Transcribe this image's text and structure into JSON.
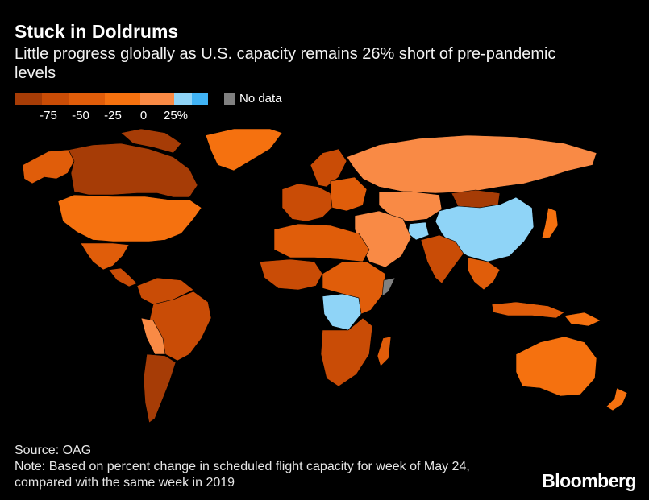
{
  "header": {
    "title": "Stuck in Doldrums",
    "subtitle": "Little progress globally as U.S. capacity remains 26% short of pre-pandemic levels"
  },
  "legend": {
    "bins": [
      {
        "color": "#a63c06"
      },
      {
        "color": "#c94c06"
      },
      {
        "color": "#e05d0a"
      },
      {
        "color": "#f5710f"
      },
      {
        "color": "#f98a45"
      },
      {
        "color": "#8fd4f7"
      },
      {
        "color": "#40b3f5"
      }
    ],
    "ticks": [
      "-75",
      "-50",
      "-25",
      "0",
      "25%"
    ],
    "no_data_label": "No data",
    "no_data_color": "#808080"
  },
  "map": {
    "regions": [
      {
        "name": "north-america-north",
        "color": "#a63c06"
      },
      {
        "name": "alaska",
        "color": "#e05d0a"
      },
      {
        "name": "greenland",
        "color": "#f5710f"
      },
      {
        "name": "canada",
        "color": "#a63c06"
      },
      {
        "name": "united-states",
        "color": "#f5710f"
      },
      {
        "name": "mexico",
        "color": "#e05d0a"
      },
      {
        "name": "central-america",
        "color": "#c94c06"
      },
      {
        "name": "south-america-north",
        "color": "#c94c06"
      },
      {
        "name": "brazil",
        "color": "#c94c06"
      },
      {
        "name": "bolivia-paraguay",
        "color": "#f98a45"
      },
      {
        "name": "argentina-chile",
        "color": "#a63c06"
      },
      {
        "name": "scandinavia",
        "color": "#c94c06"
      },
      {
        "name": "western-europe",
        "color": "#c94c06"
      },
      {
        "name": "eastern-europe",
        "color": "#e05d0a"
      },
      {
        "name": "russia",
        "color": "#f98a45"
      },
      {
        "name": "kazakhstan-central-asia",
        "color": "#f98a45"
      },
      {
        "name": "mongolia",
        "color": "#a63c06"
      },
      {
        "name": "china",
        "color": "#8fd4f7"
      },
      {
        "name": "afghanistan",
        "color": "#8fd4f7"
      },
      {
        "name": "middle-east",
        "color": "#f98a45"
      },
      {
        "name": "india",
        "color": "#c94c06"
      },
      {
        "name": "southeast-asia",
        "color": "#e05d0a"
      },
      {
        "name": "japan",
        "color": "#f5710f"
      },
      {
        "name": "north-africa",
        "color": "#e05d0a"
      },
      {
        "name": "west-africa",
        "color": "#c94c06"
      },
      {
        "name": "central-africa",
        "color": "#8fd4f7"
      },
      {
        "name": "east-africa",
        "color": "#e05d0a"
      },
      {
        "name": "somalia",
        "color": "#808080"
      },
      {
        "name": "southern-africa",
        "color": "#c94c06"
      },
      {
        "name": "madagascar",
        "color": "#e05d0a"
      },
      {
        "name": "indonesia",
        "color": "#e05d0a"
      },
      {
        "name": "papua-new-guinea",
        "color": "#f5710f"
      },
      {
        "name": "australia",
        "color": "#f5710f"
      },
      {
        "name": "new-zealand",
        "color": "#f5710f"
      }
    ]
  },
  "footer": {
    "source": "Source: OAG",
    "note": "Note: Based on percent change in scheduled flight capacity for week of May 24, compared with the same week in 2019"
  },
  "brand": "Bloomberg"
}
